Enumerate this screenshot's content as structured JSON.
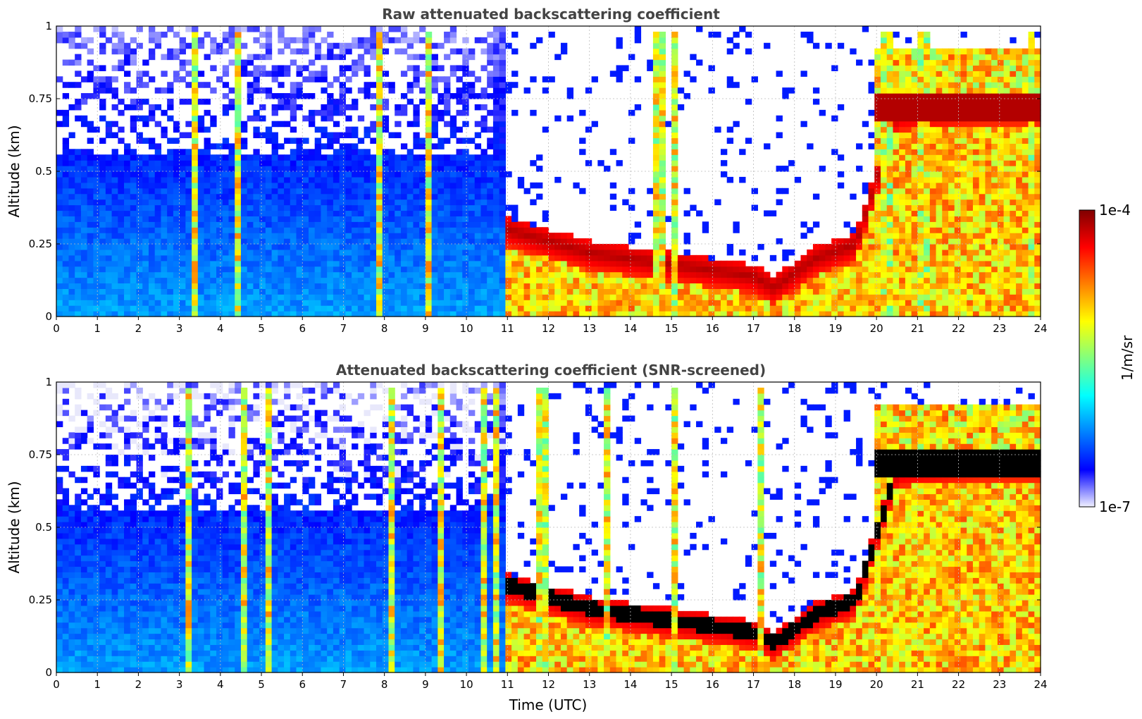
{
  "chart_data": [
    {
      "type": "heatmap",
      "title": "Raw attenuated backscattering coefficient",
      "ylabel": "Altitude (km)",
      "xlabel": "",
      "xlim": [
        0,
        24
      ],
      "ylim": [
        0,
        1
      ],
      "x_ticks": [
        "0",
        "1",
        "2",
        "3",
        "4",
        "5",
        "6",
        "7",
        "8",
        "9",
        "10",
        "11",
        "12",
        "13",
        "14",
        "15",
        "16",
        "17",
        "18",
        "19",
        "20",
        "21",
        "22",
        "23",
        "24"
      ],
      "y_ticks": [
        "0",
        "0.25",
        "0.5",
        "0.75",
        "1"
      ],
      "grid": true,
      "features": [
        {
          "t": 11.0,
          "base": 0.3
        },
        {
          "t": 13.0,
          "base": 0.22
        },
        {
          "t": 15.0,
          "base": 0.18
        },
        {
          "t": 17.0,
          "base": 0.14
        },
        {
          "t": 17.5,
          "base": 0.1
        },
        {
          "t": 18.5,
          "base": 0.2
        },
        {
          "t": 19.5,
          "base": 0.25
        },
        {
          "t": 20.5,
          "base": 0.7
        },
        {
          "t": 22.5,
          "base": 0.72
        }
      ]
    },
    {
      "type": "heatmap",
      "title": "Attenuated backscattering coefficient (SNR-screened)",
      "ylabel": "Altitude (km)",
      "xlabel": "Time (UTC)",
      "xlim": [
        0,
        24
      ],
      "ylim": [
        0,
        1
      ],
      "x_ticks": [
        "0",
        "1",
        "2",
        "3",
        "4",
        "5",
        "6",
        "7",
        "8",
        "9",
        "10",
        "11",
        "12",
        "13",
        "14",
        "15",
        "16",
        "17",
        "18",
        "19",
        "20",
        "21",
        "22",
        "23",
        "24"
      ],
      "y_ticks": [
        "0",
        "0.25",
        "0.5",
        "0.75",
        "1"
      ],
      "grid": true
    }
  ],
  "colorbar": {
    "label": "1/m/sr",
    "max_label": "1e-4",
    "min_label": "1e-7",
    "colors": [
      "#f0f0ff",
      "#0000ff",
      "#0080ff",
      "#00ffff",
      "#80ff80",
      "#ffff00",
      "#ff8000",
      "#ff0000",
      "#800000"
    ]
  }
}
